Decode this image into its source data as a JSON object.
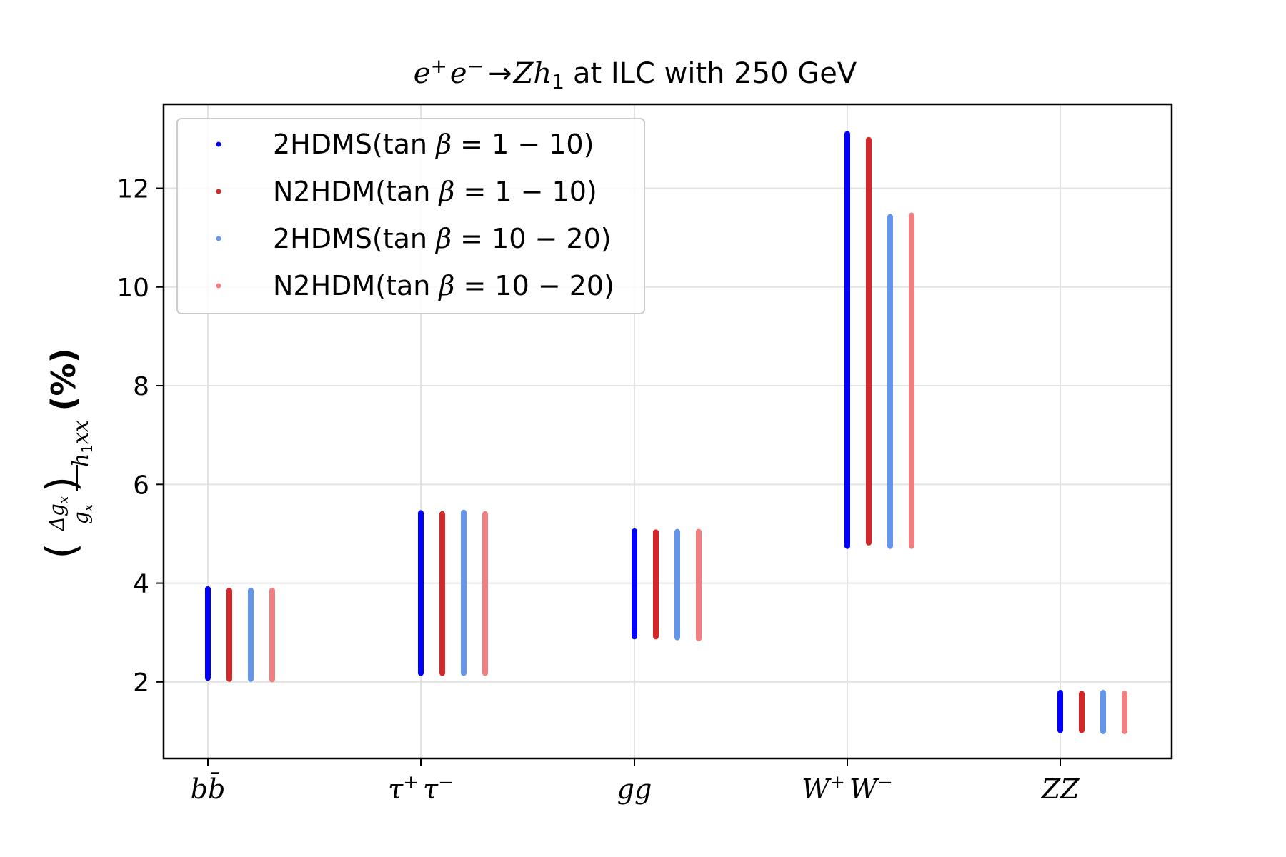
{
  "chart_data": {
    "type": "scatter",
    "title": {
      "lhs_italic": "e",
      "sup1": "+",
      "mid_italic": "e",
      "sup2": "−",
      "arrow": "→",
      "zh_italic": "Zh",
      "sub": "1",
      "rest": "at ILC with 250 GeV"
    },
    "ylabel": {
      "num": "Δg",
      "num_sub": "x",
      "den": "g",
      "den_sub": "x",
      "outer_sub": "h",
      "outer_sub_index": "1",
      "outer_sub_tail": "xx",
      "unit": "(%)"
    },
    "ylim": [
      0.45,
      13.7
    ],
    "yticks": [
      2,
      4,
      6,
      8,
      10,
      12
    ],
    "grid": true,
    "legend_position": "top-left",
    "categories": [
      {
        "main": "b",
        "bar": "b̄",
        "sup": ""
      },
      {
        "main": "τ",
        "sup": "+",
        "main2": "τ",
        "sup2": "−"
      },
      {
        "main": "gg"
      },
      {
        "main": "W",
        "sup": "+",
        "main2": "W",
        "sup2": "−"
      },
      {
        "main": "ZZ"
      }
    ],
    "series": [
      {
        "name": "2HDMS(tan β = 1 − 10)",
        "legend_model": "2HDMS",
        "legend_range": "1 − 10",
        "color": "#0000ff",
        "ranges": [
          [
            2.08,
            3.88
          ],
          [
            2.18,
            5.42
          ],
          [
            2.92,
            5.05
          ],
          [
            4.75,
            13.1
          ],
          [
            1.02,
            1.78
          ]
        ]
      },
      {
        "name": "N2HDM(tan β = 1 − 10)",
        "legend_model": "N2HDM",
        "legend_range": "1 − 10",
        "color": "#d62728",
        "ranges": [
          [
            2.06,
            3.85
          ],
          [
            2.18,
            5.4
          ],
          [
            2.92,
            5.03
          ],
          [
            4.82,
            12.98
          ],
          [
            1.02,
            1.76
          ]
        ]
      },
      {
        "name": "2HDMS(tan β = 10 − 20)",
        "legend_model": "2HDMS",
        "legend_range": "10 − 20",
        "color": "#6495ed",
        "ranges": [
          [
            2.06,
            3.85
          ],
          [
            2.18,
            5.43
          ],
          [
            2.9,
            5.04
          ],
          [
            4.75,
            11.42
          ],
          [
            1.0,
            1.78
          ]
        ]
      },
      {
        "name": "N2HDM(tan β = 10 − 20)",
        "legend_model": "N2HDM",
        "legend_range": "10 − 20",
        "color": "#f08080",
        "ranges": [
          [
            2.05,
            3.85
          ],
          [
            2.18,
            5.4
          ],
          [
            2.88,
            5.04
          ],
          [
            4.75,
            11.45
          ],
          [
            1.0,
            1.76
          ]
        ]
      }
    ]
  },
  "legend": {
    "tan_text": "tan",
    "beta": "β",
    "eq": "="
  }
}
